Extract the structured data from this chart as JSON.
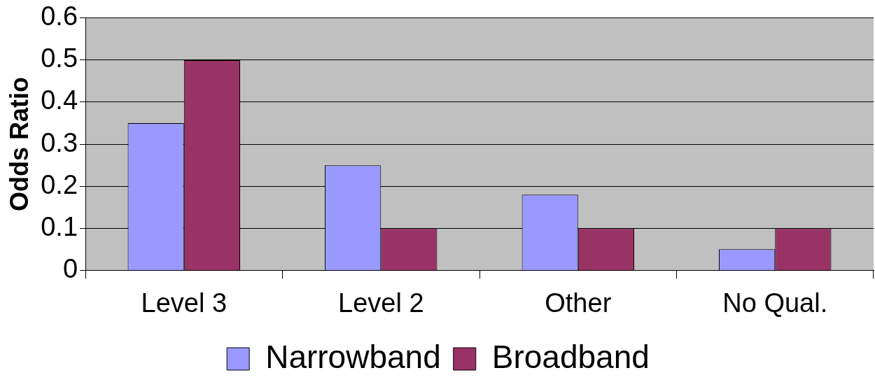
{
  "chart_data": {
    "type": "bar",
    "ylabel": "Odds Ratio",
    "categories": [
      "Level 3",
      "Level 2",
      "Other",
      "No Qual."
    ],
    "series": [
      {
        "name": "Narrowband",
        "color": "#9999ff",
        "values": [
          0.35,
          0.25,
          0.18,
          0.05
        ]
      },
      {
        "name": "Broadband",
        "color": "#993366",
        "values": [
          0.5,
          0.1,
          0.1,
          0.1
        ]
      }
    ],
    "ylim": [
      0,
      0.6
    ],
    "yticks": [
      0,
      0.1,
      0.2,
      0.3,
      0.4,
      0.5,
      0.6
    ],
    "grid": "y",
    "legend": "bottom"
  }
}
